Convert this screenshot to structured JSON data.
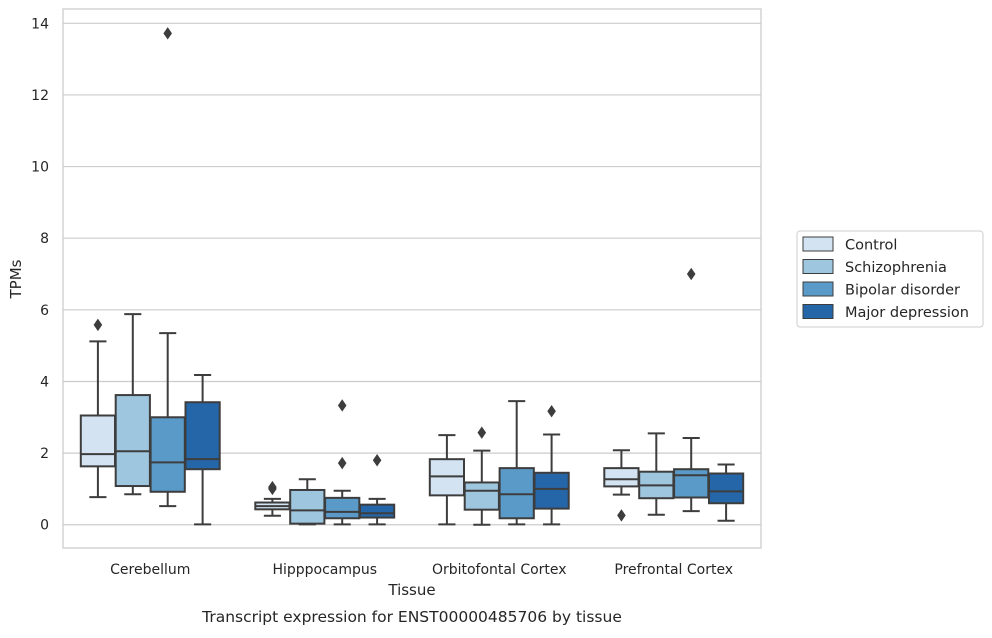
{
  "chart_data": {
    "type": "box",
    "title": "",
    "caption": "Transcript expression for ENST00000485706 by tissue",
    "xlabel": "Tissue",
    "ylabel": "TPMs",
    "ylim": [
      -0.65,
      14.4
    ],
    "yticks": [
      0,
      2,
      4,
      6,
      8,
      10,
      12,
      14
    ],
    "grid": "horizontal",
    "legend_position": "right",
    "categories": [
      "Cerebellum",
      "Hipppocampus",
      "Orbitofontal Cortex",
      "Prefrontal Cortex"
    ],
    "series": [
      {
        "name": "Control",
        "color": "#d4e3f2",
        "boxes": [
          {
            "whisker_low": 0.77,
            "q1": 1.63,
            "median": 1.97,
            "q3": 3.05,
            "whisker_high": 5.12,
            "outliers": [
              5.58
            ]
          },
          {
            "whisker_low": 0.25,
            "q1": 0.43,
            "median": 0.52,
            "q3": 0.62,
            "whisker_high": 0.72,
            "outliers": [
              1.0,
              1.05
            ]
          },
          {
            "whisker_low": 0.01,
            "q1": 0.82,
            "median": 1.35,
            "q3": 1.83,
            "whisker_high": 2.5,
            "outliers": []
          },
          {
            "whisker_low": 0.84,
            "q1": 1.07,
            "median": 1.27,
            "q3": 1.58,
            "whisker_high": 2.08,
            "outliers": [
              0.26
            ]
          }
        ]
      },
      {
        "name": "Schizophrenia",
        "color": "#9fc6df",
        "boxes": [
          {
            "whisker_low": 0.85,
            "q1": 1.08,
            "median": 2.05,
            "q3": 3.62,
            "whisker_high": 5.88,
            "outliers": []
          },
          {
            "whisker_low": 0.01,
            "q1": 0.03,
            "median": 0.4,
            "q3": 0.97,
            "whisker_high": 1.27,
            "outliers": []
          },
          {
            "whisker_low": 0.0,
            "q1": 0.42,
            "median": 0.95,
            "q3": 1.18,
            "whisker_high": 2.07,
            "outliers": [
              2.57
            ]
          },
          {
            "whisker_low": 0.28,
            "q1": 0.74,
            "median": 1.1,
            "q3": 1.48,
            "whisker_high": 2.55,
            "outliers": []
          }
        ]
      },
      {
        "name": "Bipolar disorder",
        "color": "#5a9ac8",
        "boxes": [
          {
            "whisker_low": 0.52,
            "q1": 0.92,
            "median": 1.74,
            "q3": 3.0,
            "whisker_high": 5.35,
            "outliers": [
              13.72
            ]
          },
          {
            "whisker_low": 0.01,
            "q1": 0.18,
            "median": 0.36,
            "q3": 0.75,
            "whisker_high": 0.95,
            "outliers": [
              3.33,
              1.72
            ]
          },
          {
            "whisker_low": 0.01,
            "q1": 0.18,
            "median": 0.85,
            "q3": 1.58,
            "whisker_high": 3.45,
            "outliers": []
          },
          {
            "whisker_low": 0.38,
            "q1": 0.76,
            "median": 1.38,
            "q3": 1.55,
            "whisker_high": 2.42,
            "outliers": [
              7.0
            ]
          }
        ]
      },
      {
        "name": "Major depression",
        "color": "#2466a8",
        "boxes": [
          {
            "whisker_low": 0.01,
            "q1": 1.55,
            "median": 1.83,
            "q3": 3.42,
            "whisker_high": 4.18,
            "outliers": []
          },
          {
            "whisker_low": 0.01,
            "q1": 0.2,
            "median": 0.32,
            "q3": 0.56,
            "whisker_high": 0.72,
            "outliers": [
              1.8
            ]
          },
          {
            "whisker_low": 0.01,
            "q1": 0.45,
            "median": 1.0,
            "q3": 1.45,
            "whisker_high": 2.52,
            "outliers": [
              3.17
            ]
          },
          {
            "whisker_low": 0.11,
            "q1": 0.6,
            "median": 0.93,
            "q3": 1.43,
            "whisker_high": 1.68,
            "outliers": []
          }
        ]
      }
    ]
  }
}
